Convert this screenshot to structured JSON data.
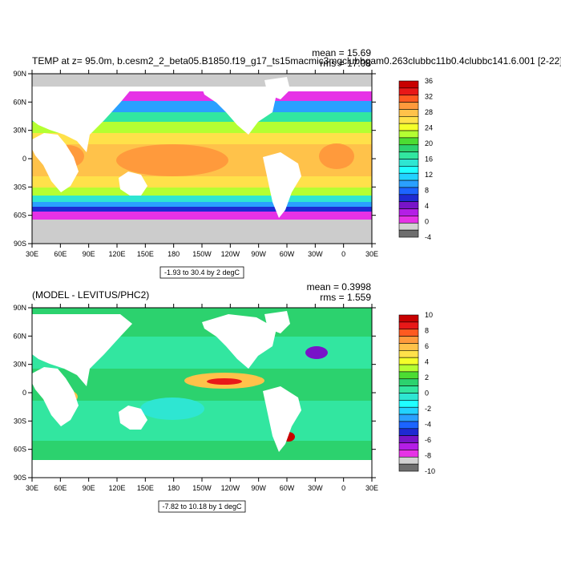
{
  "panels": [
    {
      "title": "TEMP at z=  95.0m, b.cesm2_2_beta05.B1850.f19_g17_ts15macmic3mgclubbgam0.263clubbc11b0.4clubbc141.6.001 [2-22]",
      "stats": {
        "mean": "mean = 15.69",
        "rms": "rms = 17.08"
      },
      "contour_info": "-1.93 to 30.4 by 2 degC",
      "colorbar": {
        "labels": [
          "36",
          "32",
          "28",
          "24",
          "20",
          "16",
          "12",
          "8",
          "4",
          "0",
          "-4"
        ],
        "colors": [
          "#c80000",
          "#e81818",
          "#ff5a20",
          "#ff9a3c",
          "#ffc24a",
          "#ffe14a",
          "#f4ff2a",
          "#b4ff32",
          "#4cdc32",
          "#2cd26e",
          "#32e6a0",
          "#2ee6d2",
          "#20ffff",
          "#22d2ff",
          "#2aa0ff",
          "#1c64ff",
          "#1e2ad2",
          "#7814c8",
          "#b41ee6",
          "#e632e6",
          "#d2d2d2",
          "#6e6e6e"
        ]
      }
    },
    {
      "title": "(MODEL - LEVITUS/PHC2)",
      "stats": {
        "mean": "mean = 0.3998",
        "rms": "rms = 1.559"
      },
      "contour_info": "-7.82 to 10.18 by 1 degC",
      "colorbar": {
        "labels": [
          "10",
          "8",
          "6",
          "4",
          "2",
          "0",
          "-2",
          "-4",
          "-6",
          "-8",
          "-10"
        ],
        "colors": [
          "#c80000",
          "#e81818",
          "#ff5a20",
          "#ff9a3c",
          "#ffc24a",
          "#ffe14a",
          "#f4ff2a",
          "#b4ff32",
          "#4cdc32",
          "#2cd26e",
          "#32e6a0",
          "#2ee6d2",
          "#20ffff",
          "#22d2ff",
          "#2aa0ff",
          "#1c64ff",
          "#1e2ad2",
          "#7814c8",
          "#b41ee6",
          "#e632e6",
          "#d2d2d2",
          "#6e6e6e"
        ]
      }
    }
  ],
  "axes": {
    "x_ticks": [
      "30E",
      "60E",
      "90E",
      "120E",
      "150E",
      "180",
      "150W",
      "120W",
      "90W",
      "60W",
      "30W",
      "0",
      "30E"
    ],
    "y_ticks": [
      "90N",
      "60N",
      "30N",
      "0",
      "30S",
      "60S",
      "90S"
    ]
  },
  "colors": {
    "land": "#ffffff",
    "ice": "#cccccc",
    "frame": "#000000"
  }
}
